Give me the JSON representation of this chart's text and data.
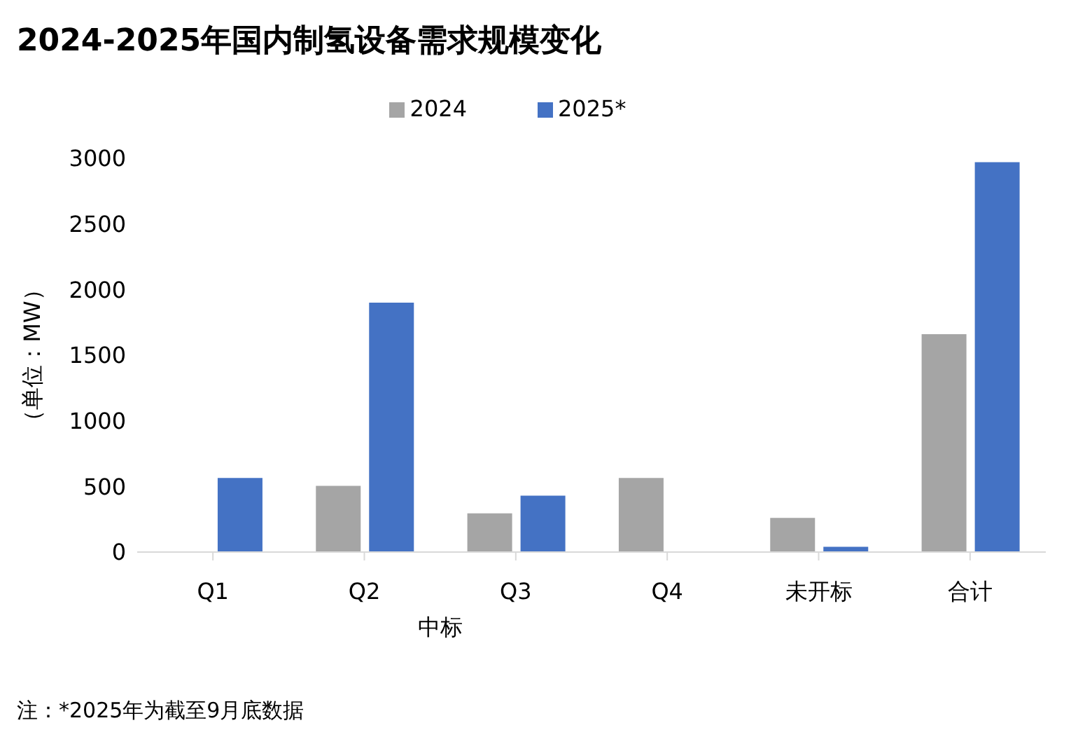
{
  "chart_data": {
    "type": "bar",
    "title": "2024-2025年国内制氢设备需求规模变化",
    "categories": [
      "Q1",
      "Q2",
      "Q3",
      "Q4",
      "未开标",
      "合计"
    ],
    "series": [
      {
        "name": "2024",
        "color": "#a5a5a5",
        "values": [
          0,
          505,
          295,
          565,
          260,
          1660
        ]
      },
      {
        "name": "2025*",
        "color": "#4472c4",
        "values": [
          565,
          1900,
          430,
          0,
          40,
          2970
        ]
      }
    ],
    "ylabel": "（单位：MW）",
    "ylim": [
      0,
      3000
    ],
    "yticks": [
      0,
      500,
      1000,
      1500,
      2000,
      2500,
      3000
    ],
    "grid": false,
    "legend": "top",
    "annotations": [
      "中标",
      "注：*2025年为截至9月底数据"
    ]
  }
}
